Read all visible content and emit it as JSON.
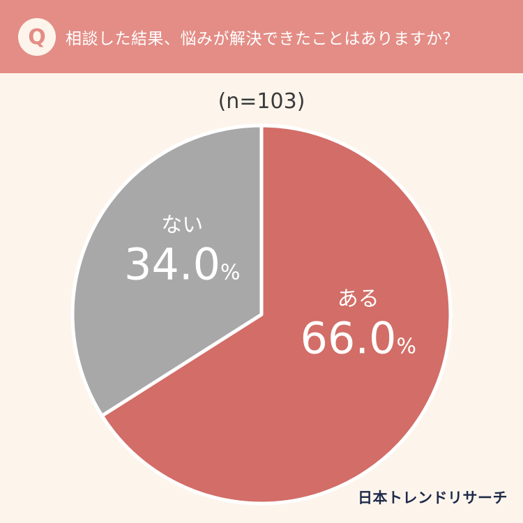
{
  "header": {
    "badge": "Q",
    "question": "相談した結果、悩みが解決できたことはありますか？"
  },
  "sample_size": "(n=103)",
  "brand": "日本トレンドリサーチ",
  "colors": {
    "header_bg": "#e38d86",
    "page_bg": "#fdf5ec",
    "aru": "#d36d67",
    "nai": "#a8a8a8"
  },
  "chart_data": {
    "type": "pie",
    "slices": [
      {
        "label": "ある",
        "value": 66.0,
        "display": "66.0",
        "unit": "%",
        "color": "#d36d67"
      },
      {
        "label": "ない",
        "value": 34.0,
        "display": "34.0",
        "unit": "%",
        "color": "#a8a8a8"
      }
    ],
    "start": "12 o'clock",
    "direction": "clockwise"
  }
}
